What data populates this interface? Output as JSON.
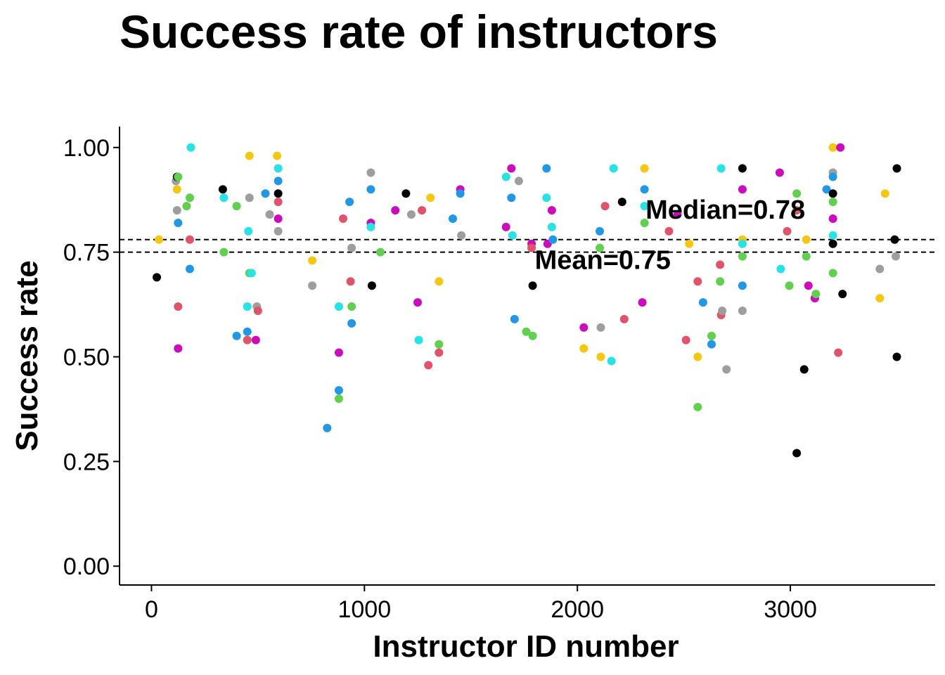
{
  "chart_data": {
    "type": "scatter",
    "title": "Success rate of instructors",
    "xlabel": "Instructor ID number",
    "ylabel": "Success rate",
    "xlim": [
      -150,
      3680
    ],
    "ylim": [
      -0.045,
      1.05
    ],
    "x_ticks": [
      0,
      1000,
      2000,
      3000
    ],
    "x_tick_labels": [
      "0",
      "1000",
      "2000",
      "3000"
    ],
    "y_ticks": [
      0,
      0.25,
      0.5,
      0.75,
      1.0
    ],
    "y_tick_labels": [
      "0.00",
      "0.25",
      "0.50",
      "0.75",
      "1.00"
    ],
    "grid": false,
    "legend": "none",
    "reference_lines": [
      {
        "name": "median",
        "value": 0.78,
        "label": "Median=0.78",
        "label_x": 2320,
        "style": "dashed"
      },
      {
        "name": "mean",
        "value": 0.75,
        "label": "Mean=0.75",
        "label_x": 1800,
        "style": "dashed"
      }
    ],
    "palette": {
      "black": "#000000",
      "red": "#DF536B",
      "green": "#61D04F",
      "blue": "#2297E6",
      "cyan": "#28E2E5",
      "magenta": "#CD0BBC",
      "yellow": "#F5C710",
      "gray": "#9E9E9E"
    },
    "points": [
      {
        "x": 25,
        "y": 0.69,
        "c": "black"
      },
      {
        "x": 35,
        "y": 0.78,
        "c": "yellow"
      },
      {
        "x": 115,
        "y": 0.92,
        "c": "gray"
      },
      {
        "x": 120,
        "y": 0.93,
        "c": "black"
      },
      {
        "x": 125,
        "y": 0.93,
        "c": "green"
      },
      {
        "x": 120,
        "y": 0.9,
        "c": "yellow"
      },
      {
        "x": 120,
        "y": 0.85,
        "c": "gray"
      },
      {
        "x": 125,
        "y": 0.82,
        "c": "blue"
      },
      {
        "x": 125,
        "y": 0.62,
        "c": "red"
      },
      {
        "x": 125,
        "y": 0.52,
        "c": "magenta"
      },
      {
        "x": 165,
        "y": 0.86,
        "c": "green"
      },
      {
        "x": 180,
        "y": 0.88,
        "c": "green"
      },
      {
        "x": 180,
        "y": 0.78,
        "c": "red"
      },
      {
        "x": 180,
        "y": 0.71,
        "c": "blue"
      },
      {
        "x": 185,
        "y": 1.0,
        "c": "cyan"
      },
      {
        "x": 335,
        "y": 0.9,
        "c": "black"
      },
      {
        "x": 340,
        "y": 0.88,
        "c": "cyan"
      },
      {
        "x": 340,
        "y": 0.75,
        "c": "green"
      },
      {
        "x": 400,
        "y": 0.86,
        "c": "green"
      },
      {
        "x": 400,
        "y": 0.55,
        "c": "blue"
      },
      {
        "x": 450,
        "y": 0.62,
        "c": "cyan"
      },
      {
        "x": 450,
        "y": 0.56,
        "c": "blue"
      },
      {
        "x": 450,
        "y": 0.54,
        "c": "red"
      },
      {
        "x": 455,
        "y": 0.8,
        "c": "cyan"
      },
      {
        "x": 460,
        "y": 0.98,
        "c": "yellow"
      },
      {
        "x": 460,
        "y": 0.88,
        "c": "gray"
      },
      {
        "x": 460,
        "y": 0.7,
        "c": "green"
      },
      {
        "x": 470,
        "y": 0.7,
        "c": "cyan"
      },
      {
        "x": 490,
        "y": 0.54,
        "c": "magenta"
      },
      {
        "x": 495,
        "y": 0.62,
        "c": "gray"
      },
      {
        "x": 500,
        "y": 0.61,
        "c": "red"
      },
      {
        "x": 535,
        "y": 0.89,
        "c": "blue"
      },
      {
        "x": 555,
        "y": 0.84,
        "c": "gray"
      },
      {
        "x": 590,
        "y": 0.98,
        "c": "yellow"
      },
      {
        "x": 595,
        "y": 0.95,
        "c": "cyan"
      },
      {
        "x": 595,
        "y": 0.92,
        "c": "blue"
      },
      {
        "x": 595,
        "y": 0.89,
        "c": "black"
      },
      {
        "x": 595,
        "y": 0.87,
        "c": "red"
      },
      {
        "x": 595,
        "y": 0.83,
        "c": "magenta"
      },
      {
        "x": 595,
        "y": 0.8,
        "c": "gray"
      },
      {
        "x": 755,
        "y": 0.73,
        "c": "yellow"
      },
      {
        "x": 755,
        "y": 0.67,
        "c": "gray"
      },
      {
        "x": 825,
        "y": 0.33,
        "c": "blue"
      },
      {
        "x": 880,
        "y": 0.62,
        "c": "cyan"
      },
      {
        "x": 880,
        "y": 0.51,
        "c": "magenta"
      },
      {
        "x": 880,
        "y": 0.42,
        "c": "blue"
      },
      {
        "x": 880,
        "y": 0.4,
        "c": "green"
      },
      {
        "x": 900,
        "y": 0.83,
        "c": "red"
      },
      {
        "x": 930,
        "y": 0.87,
        "c": "blue"
      },
      {
        "x": 935,
        "y": 0.68,
        "c": "red"
      },
      {
        "x": 940,
        "y": 0.76,
        "c": "gray"
      },
      {
        "x": 940,
        "y": 0.62,
        "c": "green"
      },
      {
        "x": 940,
        "y": 0.58,
        "c": "blue"
      },
      {
        "x": 1030,
        "y": 0.94,
        "c": "gray"
      },
      {
        "x": 1030,
        "y": 0.9,
        "c": "blue"
      },
      {
        "x": 1030,
        "y": 0.82,
        "c": "magenta"
      },
      {
        "x": 1030,
        "y": 0.81,
        "c": "cyan"
      },
      {
        "x": 1035,
        "y": 0.67,
        "c": "black"
      },
      {
        "x": 1075,
        "y": 0.75,
        "c": "green"
      },
      {
        "x": 1145,
        "y": 0.85,
        "c": "magenta"
      },
      {
        "x": 1195,
        "y": 0.89,
        "c": "black"
      },
      {
        "x": 1220,
        "y": 0.84,
        "c": "gray"
      },
      {
        "x": 1250,
        "y": 0.63,
        "c": "magenta"
      },
      {
        "x": 1255,
        "y": 0.54,
        "c": "cyan"
      },
      {
        "x": 1270,
        "y": 0.85,
        "c": "red"
      },
      {
        "x": 1300,
        "y": 0.48,
        "c": "red"
      },
      {
        "x": 1310,
        "y": 0.88,
        "c": "yellow"
      },
      {
        "x": 1350,
        "y": 0.68,
        "c": "yellow"
      },
      {
        "x": 1350,
        "y": 0.53,
        "c": "green"
      },
      {
        "x": 1350,
        "y": 0.51,
        "c": "red"
      },
      {
        "x": 1415,
        "y": 0.83,
        "c": "blue"
      },
      {
        "x": 1450,
        "y": 0.9,
        "c": "magenta"
      },
      {
        "x": 1450,
        "y": 0.89,
        "c": "blue"
      },
      {
        "x": 1455,
        "y": 0.79,
        "c": "gray"
      },
      {
        "x": 1665,
        "y": 0.93,
        "c": "cyan"
      },
      {
        "x": 1665,
        "y": 0.81,
        "c": "magenta"
      },
      {
        "x": 1690,
        "y": 0.95,
        "c": "magenta"
      },
      {
        "x": 1690,
        "y": 0.88,
        "c": "blue"
      },
      {
        "x": 1695,
        "y": 0.79,
        "c": "cyan"
      },
      {
        "x": 1705,
        "y": 0.59,
        "c": "blue"
      },
      {
        "x": 1725,
        "y": 0.92,
        "c": "gray"
      },
      {
        "x": 1760,
        "y": 0.56,
        "c": "green"
      },
      {
        "x": 1785,
        "y": 0.77,
        "c": "magenta"
      },
      {
        "x": 1785,
        "y": 0.76,
        "c": "red"
      },
      {
        "x": 1790,
        "y": 0.67,
        "c": "black"
      },
      {
        "x": 1790,
        "y": 0.55,
        "c": "green"
      },
      {
        "x": 1855,
        "y": 0.95,
        "c": "blue"
      },
      {
        "x": 1855,
        "y": 0.88,
        "c": "cyan"
      },
      {
        "x": 1860,
        "y": 0.77,
        "c": "magenta"
      },
      {
        "x": 1880,
        "y": 0.85,
        "c": "magenta"
      },
      {
        "x": 1880,
        "y": 0.81,
        "c": "cyan"
      },
      {
        "x": 1885,
        "y": 0.78,
        "c": "blue"
      },
      {
        "x": 2030,
        "y": 0.57,
        "c": "magenta"
      },
      {
        "x": 2030,
        "y": 0.52,
        "c": "yellow"
      },
      {
        "x": 2105,
        "y": 0.8,
        "c": "blue"
      },
      {
        "x": 2105,
        "y": 0.76,
        "c": "green"
      },
      {
        "x": 2110,
        "y": 0.57,
        "c": "gray"
      },
      {
        "x": 2110,
        "y": 0.5,
        "c": "yellow"
      },
      {
        "x": 2130,
        "y": 0.86,
        "c": "red"
      },
      {
        "x": 2160,
        "y": 0.49,
        "c": "cyan"
      },
      {
        "x": 2170,
        "y": 0.95,
        "c": "cyan"
      },
      {
        "x": 2210,
        "y": 0.87,
        "c": "black"
      },
      {
        "x": 2220,
        "y": 0.59,
        "c": "red"
      },
      {
        "x": 2305,
        "y": 0.63,
        "c": "magenta"
      },
      {
        "x": 2315,
        "y": 0.95,
        "c": "yellow"
      },
      {
        "x": 2315,
        "y": 0.9,
        "c": "blue"
      },
      {
        "x": 2315,
        "y": 0.86,
        "c": "cyan"
      },
      {
        "x": 2315,
        "y": 0.82,
        "c": "green"
      },
      {
        "x": 2430,
        "y": 0.8,
        "c": "red"
      },
      {
        "x": 2470,
        "y": 0.84,
        "c": "magenta"
      },
      {
        "x": 2510,
        "y": 0.54,
        "c": "red"
      },
      {
        "x": 2525,
        "y": 0.77,
        "c": "yellow"
      },
      {
        "x": 2565,
        "y": 0.68,
        "c": "red"
      },
      {
        "x": 2565,
        "y": 0.5,
        "c": "yellow"
      },
      {
        "x": 2565,
        "y": 0.38,
        "c": "green"
      },
      {
        "x": 2590,
        "y": 0.63,
        "c": "blue"
      },
      {
        "x": 2630,
        "y": 0.55,
        "c": "green"
      },
      {
        "x": 2630,
        "y": 0.53,
        "c": "blue"
      },
      {
        "x": 2670,
        "y": 0.72,
        "c": "red"
      },
      {
        "x": 2670,
        "y": 0.68,
        "c": "green"
      },
      {
        "x": 2675,
        "y": 0.6,
        "c": "red"
      },
      {
        "x": 2675,
        "y": 0.95,
        "c": "cyan"
      },
      {
        "x": 2680,
        "y": 0.61,
        "c": "gray"
      },
      {
        "x": 2700,
        "y": 0.47,
        "c": "gray"
      },
      {
        "x": 2775,
        "y": 0.95,
        "c": "black"
      },
      {
        "x": 2775,
        "y": 0.9,
        "c": "magenta"
      },
      {
        "x": 2775,
        "y": 0.78,
        "c": "yellow"
      },
      {
        "x": 2775,
        "y": 0.77,
        "c": "cyan"
      },
      {
        "x": 2775,
        "y": 0.74,
        "c": "green"
      },
      {
        "x": 2775,
        "y": 0.67,
        "c": "blue"
      },
      {
        "x": 2775,
        "y": 0.61,
        "c": "gray"
      },
      {
        "x": 2950,
        "y": 0.94,
        "c": "magenta"
      },
      {
        "x": 2955,
        "y": 0.71,
        "c": "cyan"
      },
      {
        "x": 2985,
        "y": 0.8,
        "c": "red"
      },
      {
        "x": 2995,
        "y": 0.67,
        "c": "green"
      },
      {
        "x": 3030,
        "y": 0.89,
        "c": "green"
      },
      {
        "x": 3030,
        "y": 0.85,
        "c": "red"
      },
      {
        "x": 3030,
        "y": 0.27,
        "c": "black"
      },
      {
        "x": 3065,
        "y": 0.47,
        "c": "black"
      },
      {
        "x": 3075,
        "y": 0.78,
        "c": "yellow"
      },
      {
        "x": 3075,
        "y": 0.74,
        "c": "green"
      },
      {
        "x": 3085,
        "y": 0.67,
        "c": "magenta"
      },
      {
        "x": 3115,
        "y": 0.64,
        "c": "magenta"
      },
      {
        "x": 3120,
        "y": 0.65,
        "c": "green"
      },
      {
        "x": 3170,
        "y": 0.9,
        "c": "blue"
      },
      {
        "x": 3200,
        "y": 1.0,
        "c": "yellow"
      },
      {
        "x": 3200,
        "y": 0.94,
        "c": "gray"
      },
      {
        "x": 3200,
        "y": 0.93,
        "c": "blue"
      },
      {
        "x": 3200,
        "y": 0.89,
        "c": "black"
      },
      {
        "x": 3200,
        "y": 0.87,
        "c": "green"
      },
      {
        "x": 3200,
        "y": 0.83,
        "c": "magenta"
      },
      {
        "x": 3200,
        "y": 0.79,
        "c": "cyan"
      },
      {
        "x": 3200,
        "y": 0.77,
        "c": "black"
      },
      {
        "x": 3200,
        "y": 0.7,
        "c": "green"
      },
      {
        "x": 3225,
        "y": 0.51,
        "c": "red"
      },
      {
        "x": 3235,
        "y": 1.0,
        "c": "magenta"
      },
      {
        "x": 3245,
        "y": 0.65,
        "c": "black"
      },
      {
        "x": 3420,
        "y": 0.71,
        "c": "gray"
      },
      {
        "x": 3420,
        "y": 0.64,
        "c": "yellow"
      },
      {
        "x": 3445,
        "y": 0.89,
        "c": "yellow"
      },
      {
        "x": 3490,
        "y": 0.78,
        "c": "black"
      },
      {
        "x": 3495,
        "y": 0.74,
        "c": "gray"
      },
      {
        "x": 3500,
        "y": 0.95,
        "c": "black"
      },
      {
        "x": 3500,
        "y": 0.5,
        "c": "black"
      }
    ]
  }
}
